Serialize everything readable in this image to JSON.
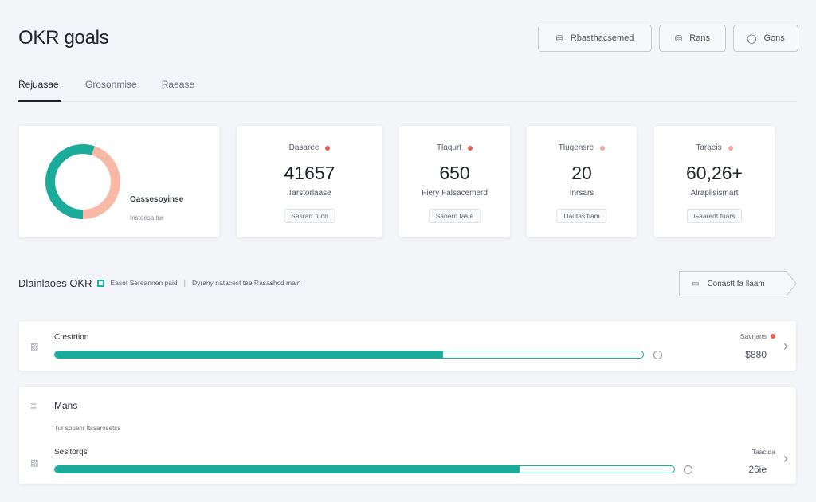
{
  "page": {
    "title": "OKR goals"
  },
  "toolbar": {
    "buttons": [
      {
        "label": "Rbasthacsemed",
        "icon": "filter-icon"
      },
      {
        "label": "Rans",
        "icon": "settings-icon"
      },
      {
        "label": "Gons",
        "icon": "info-icon"
      }
    ]
  },
  "tabs": [
    {
      "label": "Rejuasae",
      "active": true
    },
    {
      "label": "Grosonmise",
      "active": false
    },
    {
      "label": "Raease",
      "active": false
    }
  ],
  "summary": {
    "donut": {
      "title": "Oassesoyinse",
      "subtitle": "Instorisa tur",
      "progress": 0.55,
      "colors": {
        "fill": "#1aab9b",
        "rest": "#f7b8a6"
      }
    },
    "stats": [
      {
        "label": "Dasaree",
        "value": "41657",
        "sub": "Tarstorlaase",
        "chip": "Sasrarr fuon",
        "dot": "#ef5b4f"
      },
      {
        "label": "Tlagurt",
        "value": "650",
        "sub": "Fiery Falsacemerd",
        "chip": "Saoerd fasie",
        "dot": "#ef5b4f"
      },
      {
        "label": "Tlugensre",
        "value": "20",
        "sub": "Inrsars",
        "chip": "Dautas fiam",
        "dot": "#f7a598"
      },
      {
        "label": "Taraeis",
        "value": "60,26+",
        "sub": "Alraplisismart",
        "chip": "Gaaredt fuars",
        "dot": "#f7a598"
      }
    ]
  },
  "section": {
    "title": "Dlainlaoes OKR",
    "note1": "Easot Sereannen paid",
    "separator": "|",
    "note2": "Dyrany natacest tae Rasashcd main",
    "button_label": "Conastt fa llaam",
    "button_icon": "calendar-icon"
  },
  "rows": [
    {
      "label": "Crestrtion",
      "progress": 0.66,
      "status": "Savnans",
      "status_dot": "#ef5b4f",
      "value": "$880"
    },
    {
      "title": "Mans",
      "subtitle": "Tur souenr ttssarosetss",
      "label": "Sesitorqs",
      "progress": 0.75,
      "status": "Taacida",
      "value": "26ie"
    }
  ],
  "colors": {
    "accent": "#1aab9b",
    "alert": "#ef5b4f"
  }
}
